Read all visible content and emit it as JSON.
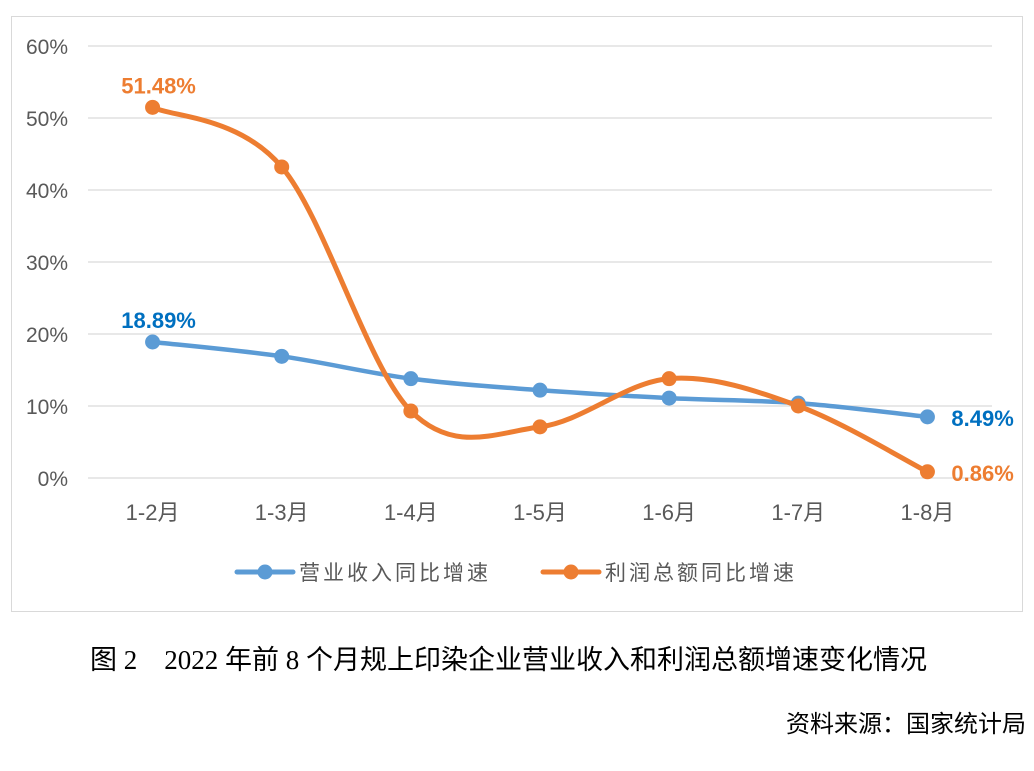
{
  "chart_data": {
    "type": "line",
    "categories": [
      "1-2月",
      "1-3月",
      "1-4月",
      "1-5月",
      "1-6月",
      "1-7月",
      "1-8月"
    ],
    "ylim": [
      0,
      60
    ],
    "yticks": [
      "0%",
      "10%",
      "20%",
      "30%",
      "40%",
      "50%",
      "60%"
    ],
    "grid": true,
    "smooth": true,
    "legend_position": "bottom",
    "series": [
      {
        "name": "营业收入同比增速",
        "color": "#5b9bd5",
        "label_color": "#0070c0",
        "values": [
          18.89,
          16.9,
          13.8,
          12.2,
          11.1,
          10.4,
          8.49
        ],
        "labels": {
          "0": "18.89%",
          "6": "8.49%"
        }
      },
      {
        "name": "利润总额同比增速",
        "color": "#ed7d31",
        "label_color": "#ed7d31",
        "values": [
          51.48,
          43.2,
          9.3,
          7.1,
          13.8,
          10.0,
          0.86
        ],
        "labels": {
          "0": "51.48%",
          "6": "0.86%"
        }
      }
    ]
  },
  "caption": "图 2　2022 年前 8 个月规上印染企业营业收入和利润总额增速变化情况",
  "source": "资料来源：国家统计局"
}
